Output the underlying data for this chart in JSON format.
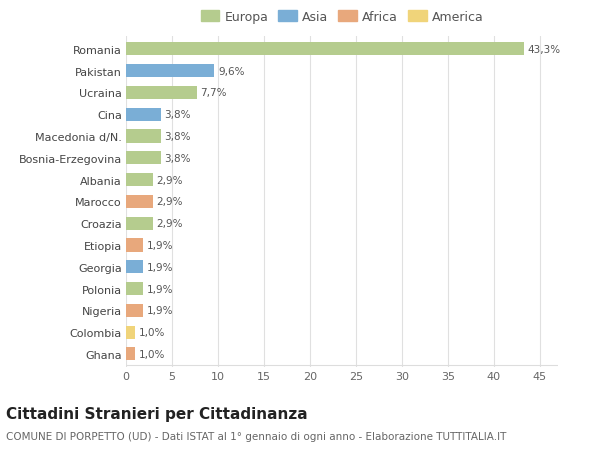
{
  "countries": [
    "Romania",
    "Pakistan",
    "Ucraina",
    "Cina",
    "Macedonia d/N.",
    "Bosnia-Erzegovina",
    "Albania",
    "Marocco",
    "Croazia",
    "Etiopia",
    "Georgia",
    "Polonia",
    "Nigeria",
    "Colombia",
    "Ghana"
  ],
  "values": [
    43.3,
    9.6,
    7.7,
    3.8,
    3.8,
    3.8,
    2.9,
    2.9,
    2.9,
    1.9,
    1.9,
    1.9,
    1.9,
    1.0,
    1.0
  ],
  "labels": [
    "43,3%",
    "9,6%",
    "7,7%",
    "3,8%",
    "3,8%",
    "3,8%",
    "2,9%",
    "2,9%",
    "2,9%",
    "1,9%",
    "1,9%",
    "1,9%",
    "1,9%",
    "1,0%",
    "1,0%"
  ],
  "continents": [
    "Europa",
    "Asia",
    "Europa",
    "Asia",
    "Europa",
    "Europa",
    "Europa",
    "Africa",
    "Europa",
    "Africa",
    "Asia",
    "Europa",
    "Africa",
    "America",
    "Africa"
  ],
  "continent_colors": {
    "Europa": "#b5cc8e",
    "Asia": "#7aaed6",
    "Africa": "#e8a87c",
    "America": "#f0d47a"
  },
  "xlim": [
    0,
    47
  ],
  "xticks": [
    0,
    5,
    10,
    15,
    20,
    25,
    30,
    35,
    40,
    45
  ],
  "title": "Cittadini Stranieri per Cittadinanza",
  "subtitle": "COMUNE DI PORPETTO (UD) - Dati ISTAT al 1° gennaio di ogni anno - Elaborazione TUTTITALIA.IT",
  "background_color": "#ffffff",
  "bar_height": 0.6,
  "label_fontsize": 7.5,
  "country_fontsize": 8,
  "tick_fontsize": 8,
  "title_fontsize": 11,
  "subtitle_fontsize": 7.5,
  "legend_order": [
    "Europa",
    "Asia",
    "Africa",
    "America"
  ]
}
